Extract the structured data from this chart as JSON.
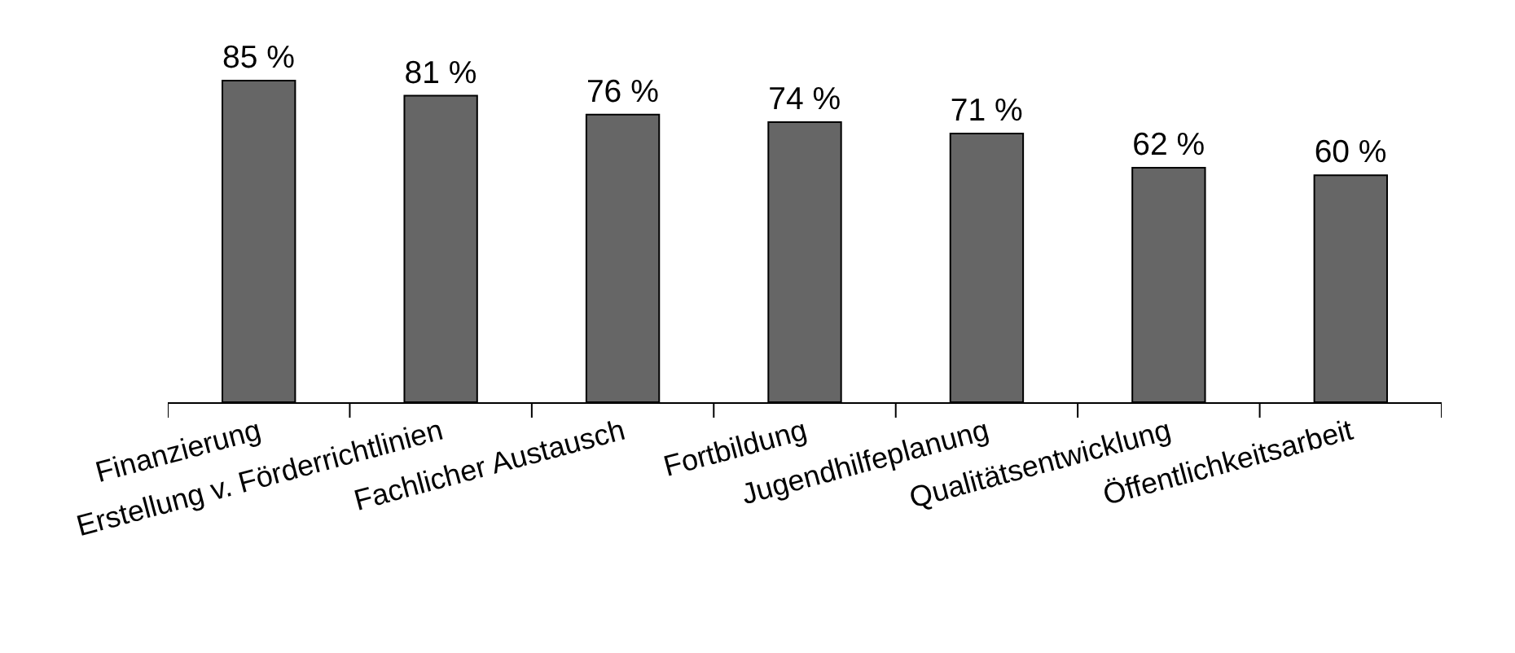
{
  "chart_data": {
    "type": "bar",
    "categories": [
      "Finanzierung",
      "Erstellung v. Förderrichtlinien",
      "Fachlicher Austausch",
      "Fortbildung",
      "Jugendhilfeplanung",
      "Qualitätsentwicklung",
      "Öffentlichkeitsarbeit"
    ],
    "values": [
      85,
      81,
      76,
      74,
      71,
      62,
      60
    ],
    "value_labels": [
      "85 %",
      "81 %",
      "76 %",
      "74 %",
      "71 %",
      "62 %",
      "60 %"
    ],
    "color": "#666666"
  }
}
